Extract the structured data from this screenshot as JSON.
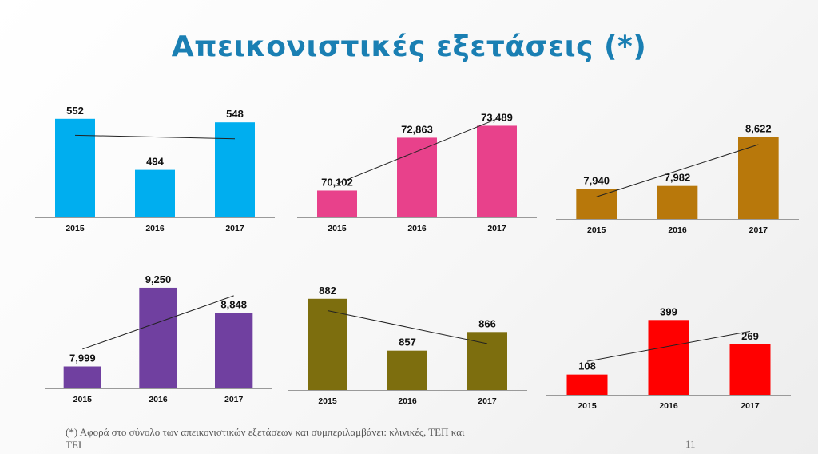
{
  "title": "Απεικονιστικές εξετάσεις (*)",
  "footnote": "(*) Αφορά στο σύνολο των απεικονιστικών εξετάσεων και συμπεριλαμβάνει: κλινικές, ΤΕΠ και ΤΕΙ",
  "page_number": "11",
  "chart_data": [
    {
      "type": "bar",
      "categories": [
        "2015",
        "2016",
        "2017"
      ],
      "values": [
        552,
        494,
        548
      ],
      "value_labels": [
        "552",
        "494",
        "548"
      ],
      "ylim": [
        440,
        560
      ],
      "trendline": true,
      "color": "#00aeef"
    },
    {
      "type": "bar",
      "categories": [
        "2015",
        "2016",
        "2017"
      ],
      "values": [
        70102,
        72863,
        73489
      ],
      "value_labels": [
        "70,102",
        "72,863",
        "73,489"
      ],
      "ylim": [
        68700,
        73800
      ],
      "trendline": true,
      "color": "#e8418b"
    },
    {
      "type": "bar",
      "categories": [
        "2015",
        "2016",
        "2017"
      ],
      "values": [
        7940,
        7982,
        8622
      ],
      "value_labels": [
        "7,940",
        "7,982",
        "8,622"
      ],
      "ylim": [
        7550,
        8700
      ],
      "trendline": true,
      "color": "#b8780b"
    },
    {
      "type": "bar",
      "categories": [
        "2015",
        "2016",
        "2017"
      ],
      "values": [
        7999,
        9250,
        8848
      ],
      "value_labels": [
        "7,999",
        "9,250",
        "8,848"
      ],
      "ylim": [
        7650,
        9300
      ],
      "trendline": true,
      "color": "#7040a0"
    },
    {
      "type": "bar",
      "categories": [
        "2015",
        "2016",
        "2017"
      ],
      "values": [
        882,
        857,
        866
      ],
      "value_labels": [
        "882",
        "857",
        "866"
      ],
      "ylim": [
        838,
        885
      ],
      "trendline": true,
      "color": "#7d6e0e"
    },
    {
      "type": "bar",
      "categories": [
        "2015",
        "2016",
        "2017"
      ],
      "values": [
        108,
        399,
        269
      ],
      "value_labels": [
        "108",
        "399",
        "269"
      ],
      "ylim": [
        0,
        460
      ],
      "trendline": true,
      "color": "#ff0000"
    }
  ]
}
